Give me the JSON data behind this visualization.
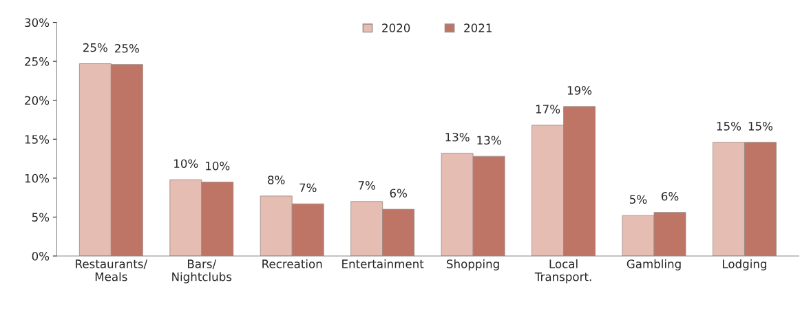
{
  "chart_data": {
    "type": "bar",
    "categories": [
      "Restaurants/\nMeals",
      "Bars/\nNightclubs",
      "Recreation",
      "Entertainment",
      "Shopping",
      "Local\nTransport.",
      "Gambling",
      "Lodging"
    ],
    "series": [
      {
        "name": "2020",
        "color": "#e6bdb3",
        "values": [
          24.7,
          9.8,
          7.7,
          7.0,
          13.2,
          16.8,
          5.2,
          14.6
        ],
        "value_labels": [
          "25%",
          "10%",
          "8%",
          "7%",
          "13%",
          "17%",
          "5%",
          "15%"
        ]
      },
      {
        "name": "2021",
        "color": "#bf7565",
        "values": [
          24.6,
          9.5,
          6.7,
          6.0,
          12.8,
          19.2,
          5.6,
          14.6
        ],
        "value_labels": [
          "25%",
          "10%",
          "7%",
          "6%",
          "13%",
          "19%",
          "6%",
          "15%"
        ]
      }
    ],
    "ylim": [
      0,
      30
    ],
    "yticks": [
      {
        "value": 0,
        "label": "0%"
      },
      {
        "value": 5,
        "label": "5%"
      },
      {
        "value": 10,
        "label": "10%"
      },
      {
        "value": 15,
        "label": "15%"
      },
      {
        "value": 20,
        "label": "20%"
      },
      {
        "value": 25,
        "label": "25%"
      },
      {
        "value": 30,
        "label": "30%"
      }
    ],
    "grid": false,
    "legend": "top"
  }
}
